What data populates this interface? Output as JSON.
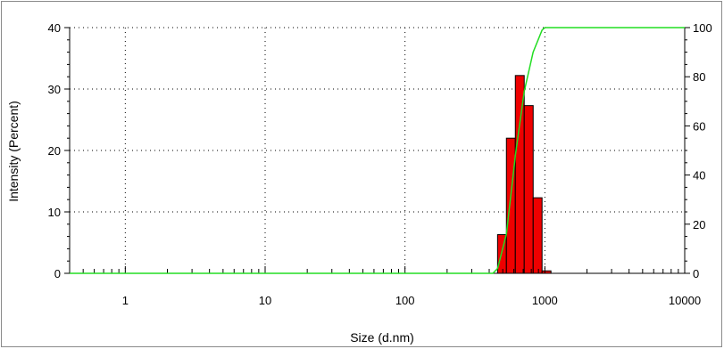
{
  "chart_data": {
    "type": "bar",
    "title": "",
    "xlabel": "Size (d.nm)",
    "ylabel": "Intensity (Percent)",
    "x_scale": "log",
    "xlim": [
      0.4,
      10000
    ],
    "ylim": [
      0,
      40
    ],
    "y2lim": [
      0,
      100
    ],
    "grid": true,
    "legend": "none",
    "x_ticks": [
      {
        "value": 1,
        "label": "1"
      },
      {
        "value": 10,
        "label": "10"
      },
      {
        "value": 100,
        "label": "100"
      },
      {
        "value": 1000,
        "label": "1000"
      },
      {
        "value": 10000,
        "label": "10000"
      }
    ],
    "y_ticks": [
      {
        "value": 0,
        "label": "0"
      },
      {
        "value": 10,
        "label": "10"
      },
      {
        "value": 20,
        "label": "20"
      },
      {
        "value": 30,
        "label": "30"
      },
      {
        "value": 40,
        "label": "40"
      }
    ],
    "y2_ticks": [
      {
        "value": 0,
        "label": "0"
      },
      {
        "value": 20,
        "label": "20"
      },
      {
        "value": 40,
        "label": "40"
      },
      {
        "value": 60,
        "label": "60"
      },
      {
        "value": 80,
        "label": "80"
      },
      {
        "value": 100,
        "label": "100"
      }
    ],
    "bars": [
      {
        "x_from": 459,
        "x_to": 531,
        "value": 6.3
      },
      {
        "x_from": 531,
        "x_to": 615,
        "value": 22.0
      },
      {
        "x_from": 615,
        "x_to": 712,
        "value": 32.2
      },
      {
        "x_from": 712,
        "x_to": 825,
        "value": 27.3
      },
      {
        "x_from": 825,
        "x_to": 955,
        "value": 12.3
      },
      {
        "x_from": 955,
        "x_to": 1106,
        "value": 0.4
      }
    ],
    "cumulative_curve": {
      "axis": "right",
      "x": [
        0.4,
        425,
        459,
        531,
        615,
        712,
        825,
        955,
        1000,
        10000
      ],
      "y": [
        0,
        0,
        2,
        16,
        48,
        74,
        90,
        99,
        100,
        100
      ]
    },
    "colors": {
      "bar": "#ee0000",
      "curve": "#22dd22",
      "grid": "#000000"
    }
  }
}
